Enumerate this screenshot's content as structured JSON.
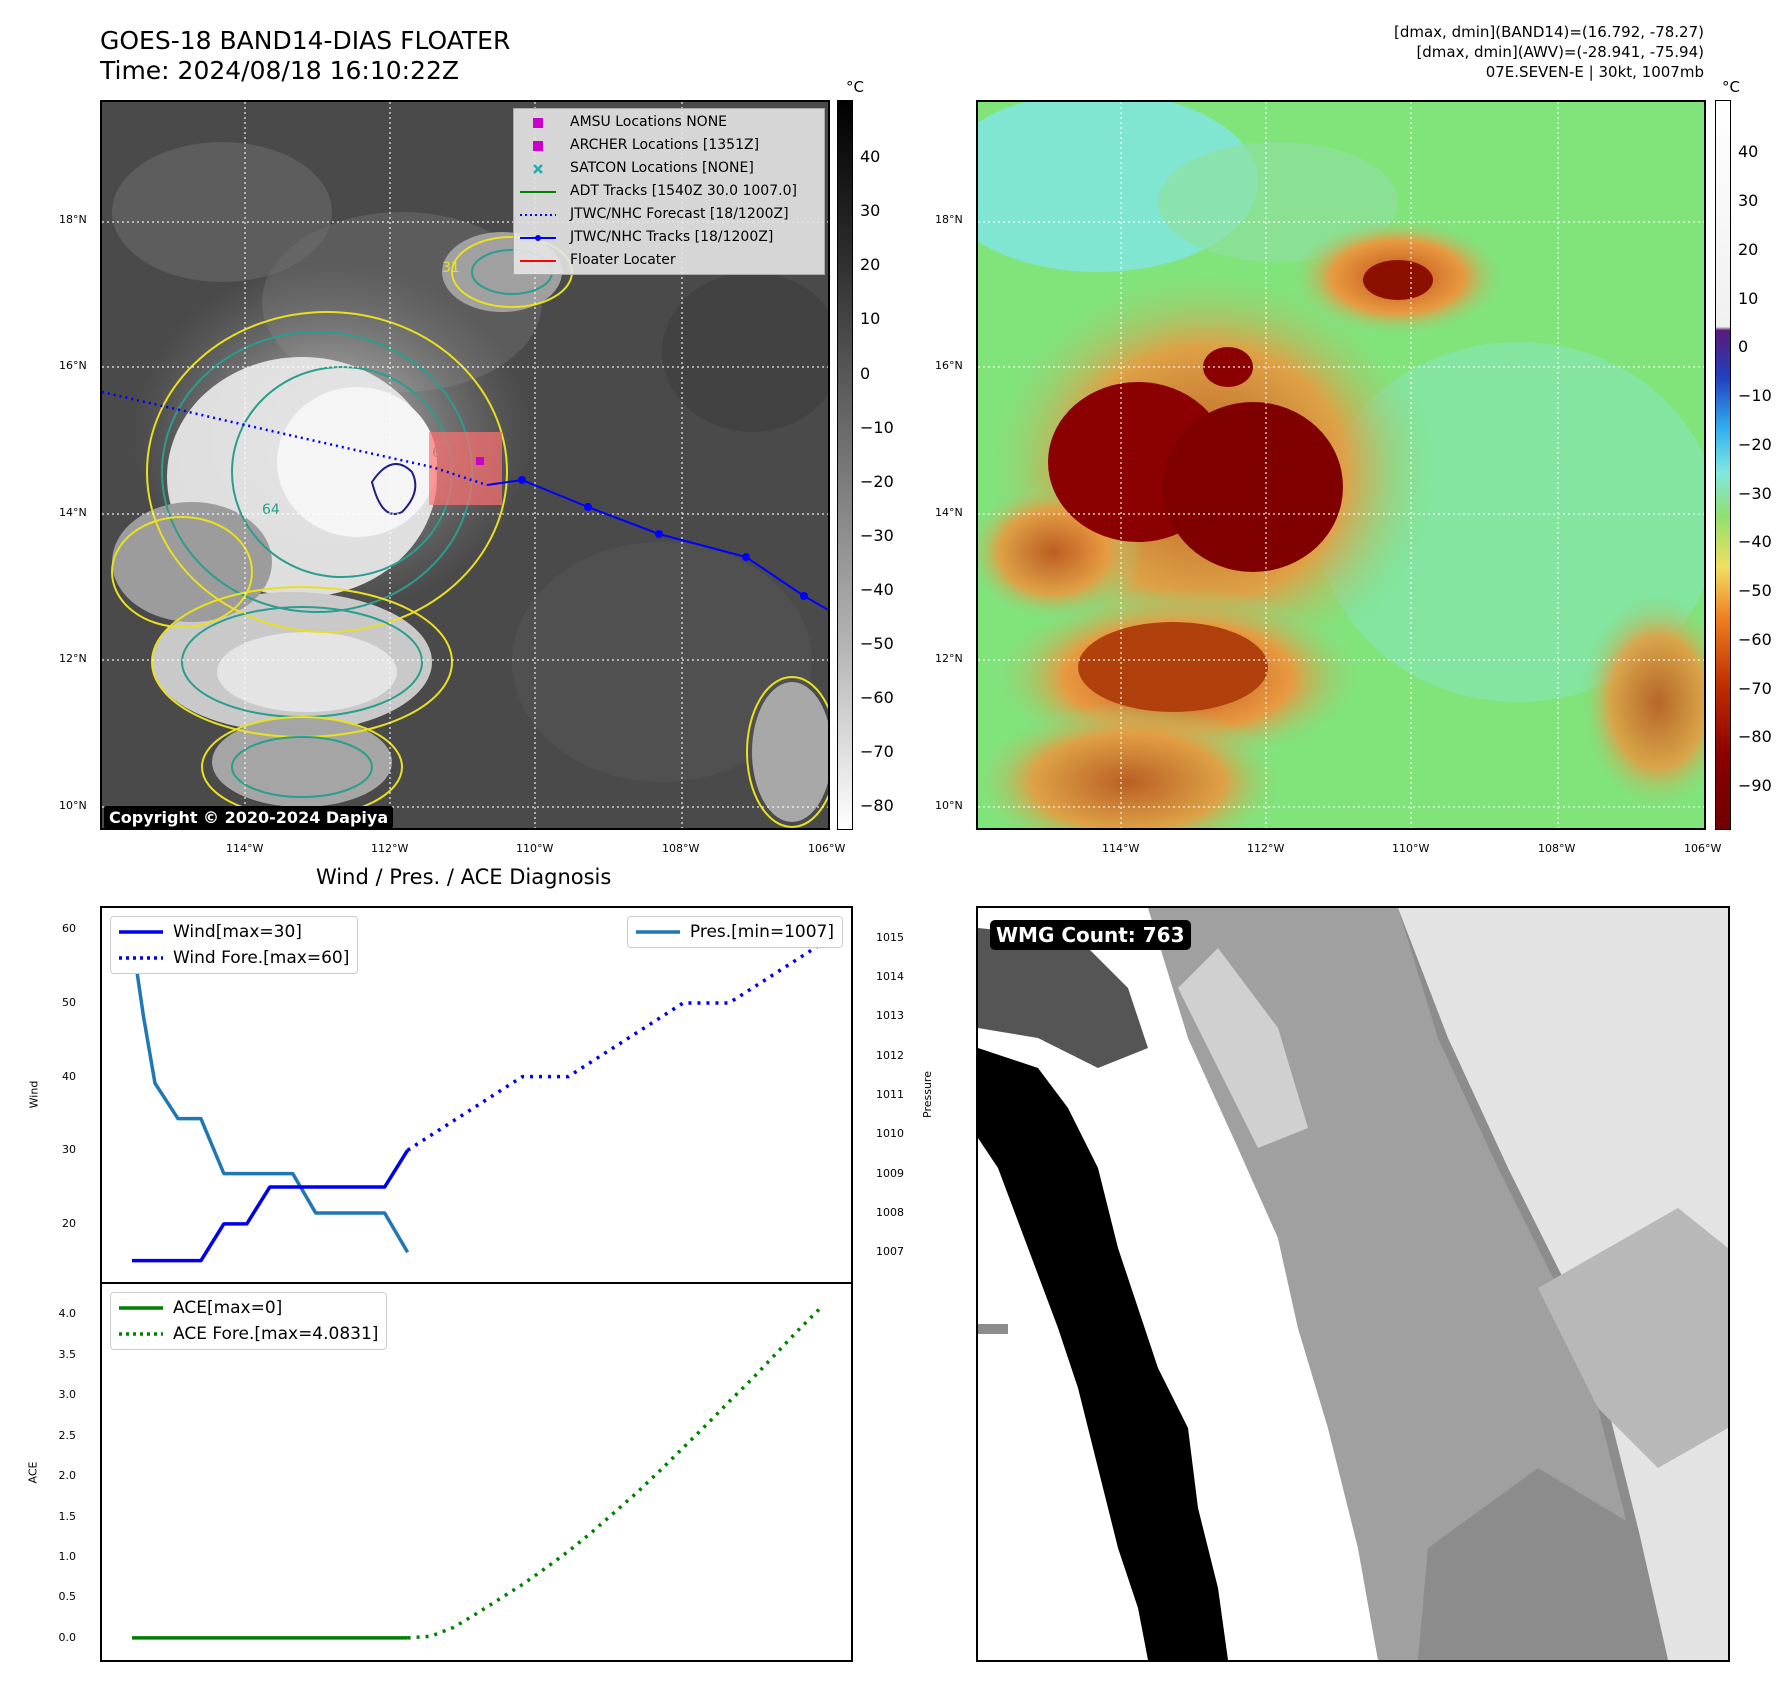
{
  "header": {
    "title_line1": "GOES-18 BAND14-DIAS FLOATER",
    "title_line2": "Time: 2024/08/18 16:10:22Z",
    "info_line1": "[dmax, dmin](BAND14)=(16.792, -78.27)",
    "info_line2": "[dmax, dmin](AWV)=(-28.941, -75.94)",
    "info_line3": "07E.SEVEN-E | 30kt, 1007mb"
  },
  "map_axes": {
    "lat_labels": [
      "18°N",
      "16°N",
      "14°N",
      "12°N",
      "10°N"
    ],
    "lon_labels": [
      "114°W",
      "112°W",
      "110°W",
      "108°W",
      "106°W"
    ]
  },
  "ir_panel": {
    "unit": "°C",
    "colorbar_ticks": [
      "40",
      "30",
      "20",
      "10",
      "0",
      "−10",
      "−20",
      "−30",
      "−40",
      "−50",
      "−60",
      "−70",
      "−80"
    ],
    "copyright": "Copyright © 2020-2024 Dapiya",
    "legend": [
      {
        "label": "AMSU Locations NONE",
        "symbol": "square",
        "color": "#cc00cc"
      },
      {
        "label": "ARCHER Locations [1351Z]",
        "symbol": "square",
        "color": "#cc00cc"
      },
      {
        "label": "SATCON Locations [NONE]",
        "symbol": "x",
        "color": "#20b0b0"
      },
      {
        "label": "ADT Tracks [1540Z 30.0 1007.0]",
        "symbol": "line",
        "color": "#008000"
      },
      {
        "label": "JTWC/NHC Forecast [18/1200Z]",
        "symbol": "dotted",
        "color": "#0000ff"
      },
      {
        "label": "JTWC/NHC Tracks [18/1200Z]",
        "symbol": "line-dot",
        "color": "#0000ff"
      },
      {
        "label": "Floater Locater",
        "symbol": "line",
        "color": "#ff0000"
      }
    ],
    "contour_labels": [
      "31",
      "64",
      "6"
    ]
  },
  "awv_panel": {
    "unit": "°C",
    "colorbar_ticks": [
      "40",
      "30",
      "20",
      "10",
      "0",
      "−10",
      "−20",
      "−30",
      "−40",
      "−50",
      "−60",
      "−70",
      "−80",
      "−90"
    ]
  },
  "diagnosis": {
    "title": "Wind / Pres. / ACE Diagnosis",
    "wind_ylabel": "Wind",
    "pres_ylabel": "Pressure",
    "ace_ylabel": "ACE",
    "wind_ticks": [
      "60",
      "50",
      "40",
      "30",
      "20"
    ],
    "pres_ticks": [
      "1015",
      "1014",
      "1013",
      "1012",
      "1011",
      "1010",
      "1009",
      "1008",
      "1007"
    ],
    "ace_ticks": [
      "4.0",
      "3.5",
      "3.0",
      "2.5",
      "2.0",
      "1.5",
      "1.0",
      "0.5",
      "0.0"
    ],
    "legend_wind": "Wind[max=30]",
    "legend_wind_fore": "Wind Fore.[max=60]",
    "legend_pres": "Pres.[min=1007]",
    "legend_ace": "ACE[max=0]",
    "legend_ace_fore": "ACE Fore.[max=4.0831]"
  },
  "chart_data": [
    {
      "type": "line",
      "title": "Wind / Pres. / ACE Diagnosis",
      "ylabel": "Wind",
      "ylim": [
        14,
        61
      ],
      "x": [
        0,
        1,
        2,
        3,
        4,
        5,
        6,
        7,
        8,
        9,
        10,
        11,
        12,
        13,
        14,
        15,
        16,
        17,
        18,
        19,
        20,
        21,
        22,
        23,
        24,
        25,
        26,
        27,
        28,
        29,
        30
      ],
      "series": [
        {
          "name": "Wind[max=30]",
          "color": "#0000ee",
          "style": "solid",
          "x": [
            0,
            1,
            2,
            3,
            4,
            5,
            6,
            7,
            8,
            9,
            10,
            11,
            12
          ],
          "values": [
            15,
            15,
            15,
            15,
            20,
            20,
            25,
            25,
            25,
            25,
            25,
            25,
            30
          ]
        },
        {
          "name": "Wind Fore.[max=60]",
          "color": "#0000ee",
          "style": "dotted",
          "x": [
            12,
            13,
            14,
            15,
            16,
            17,
            18,
            19,
            20,
            21,
            22,
            23,
            24,
            25,
            26,
            27,
            28,
            29,
            30
          ],
          "values": [
            30,
            32,
            34,
            36,
            38,
            40,
            40,
            40,
            42,
            44,
            46,
            48,
            50,
            50,
            50,
            52,
            54,
            56,
            58
          ]
        }
      ]
    },
    {
      "type": "line",
      "ylabel": "Pressure",
      "ylim": [
        1006.6,
        1015.4
      ],
      "series": [
        {
          "name": "Pres.[min=1007]",
          "color": "#1f77b4",
          "style": "solid",
          "x": [
            0,
            0.5,
            1,
            2,
            3,
            4,
            5,
            6,
            7,
            8,
            9,
            10,
            11,
            12
          ],
          "values": [
            1015,
            1013,
            1011.3,
            1010.4,
            1010.4,
            1009,
            1009,
            1009,
            1009,
            1008,
            1008,
            1008,
            1008,
            1007
          ]
        }
      ]
    },
    {
      "type": "line",
      "ylabel": "ACE",
      "ylim": [
        -0.1,
        4.2
      ],
      "series": [
        {
          "name": "ACE[max=0]",
          "color": "#008000",
          "style": "solid",
          "x": [
            0,
            12
          ],
          "values": [
            0,
            0
          ]
        },
        {
          "name": "ACE Fore.[max=4.0831]",
          "color": "#008000",
          "style": "dotted",
          "x": [
            12,
            13,
            14,
            15,
            16,
            17,
            18,
            19,
            20,
            21,
            22,
            23,
            24,
            25,
            26,
            27,
            28,
            29,
            30
          ],
          "values": [
            0,
            0.02,
            0.13,
            0.3,
            0.48,
            0.66,
            0.86,
            1.07,
            1.3,
            1.55,
            1.8,
            2.07,
            2.35,
            2.63,
            2.92,
            3.2,
            3.5,
            3.8,
            4.0831
          ]
        }
      ]
    }
  ],
  "wmg_panel": {
    "badge": "WMG Count: 763"
  }
}
